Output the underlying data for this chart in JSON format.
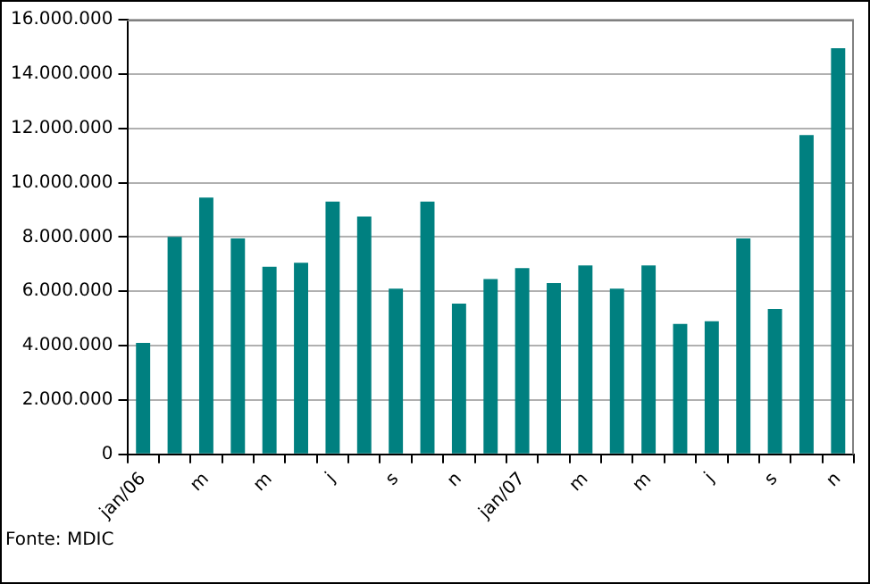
{
  "chart_data": {
    "type": "bar",
    "categories": [
      "jan/06",
      null,
      "m",
      null,
      "m",
      null,
      "j",
      null,
      "s",
      null,
      "n",
      null,
      "jan/07",
      null,
      "m",
      null,
      "m",
      null,
      "j",
      null,
      "s",
      null,
      "n"
    ],
    "values": [
      4100000,
      8000000,
      9450000,
      7950000,
      6900000,
      7050000,
      9300000,
      8750000,
      6100000,
      9300000,
      5550000,
      6450000,
      6850000,
      6300000,
      6950000,
      6100000,
      6950000,
      4800000,
      4900000,
      7950000,
      5350000,
      11750000,
      14950000
    ],
    "color": "#008080",
    "ylim": [
      0,
      16000000
    ],
    "yticks": [
      {
        "value": 0,
        "label": "0"
      },
      {
        "value": 2000000,
        "label": "2.000.000"
      },
      {
        "value": 4000000,
        "label": "4.000.000"
      },
      {
        "value": 6000000,
        "label": "6.000.000"
      },
      {
        "value": 8000000,
        "label": "8.000.000"
      },
      {
        "value": 10000000,
        "label": "10.000.000"
      },
      {
        "value": 12000000,
        "label": "12.000.000"
      },
      {
        "value": 14000000,
        "label": "14.000.000"
      },
      {
        "value": 16000000,
        "label": "16.000.000"
      }
    ],
    "grid": "y",
    "annotations": [
      "Fonte: MDIC"
    ]
  }
}
